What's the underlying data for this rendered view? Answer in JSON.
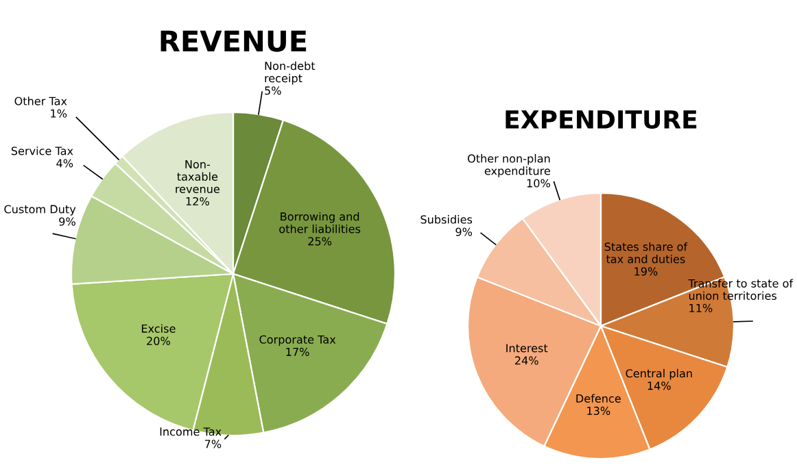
{
  "chart_data": [
    {
      "type": "pie",
      "title": "REVENUE",
      "categories": [
        "Non-debt\nreceipt",
        "Borrowing and\nother liabilities",
        "Corporate Tax",
        "Income Tax",
        "Excise",
        "Custom Duty",
        "Service Tax",
        "Other Tax",
        "Non-\ntaxable\nrevenue"
      ],
      "values": [
        5,
        25,
        17,
        7,
        20,
        9,
        4,
        1,
        12
      ],
      "value_labels": [
        "5%",
        "25%",
        "17%",
        "7%",
        "20%",
        "9%",
        "4%",
        "1%",
        "12%"
      ],
      "colors": [
        "#6b8a3a",
        "#77963e",
        "#8aac50",
        "#9bbb59",
        "#a6c76a",
        "#b5d08a",
        "#c6dba4",
        "#d0e2b4",
        "#dde8cc"
      ]
    },
    {
      "type": "pie",
      "title": "EXPENDITURE",
      "categories": [
        "States share of\ntax and duties",
        "Transfer to state of\nunion territories",
        "Central plan",
        "Defence",
        "Interest",
        "Subsidies",
        "Other non-plan\nexpenditure"
      ],
      "values": [
        19,
        11,
        14,
        13,
        24,
        9,
        10
      ],
      "value_labels": [
        "19%",
        "11%",
        "14%",
        "13%",
        "24%",
        "9%",
        "10%"
      ],
      "colors": [
        "#b5652b",
        "#d07a38",
        "#e8883f",
        "#f29650",
        "#f4aa7c",
        "#f6bf9f",
        "#f9d2bf"
      ]
    }
  ]
}
